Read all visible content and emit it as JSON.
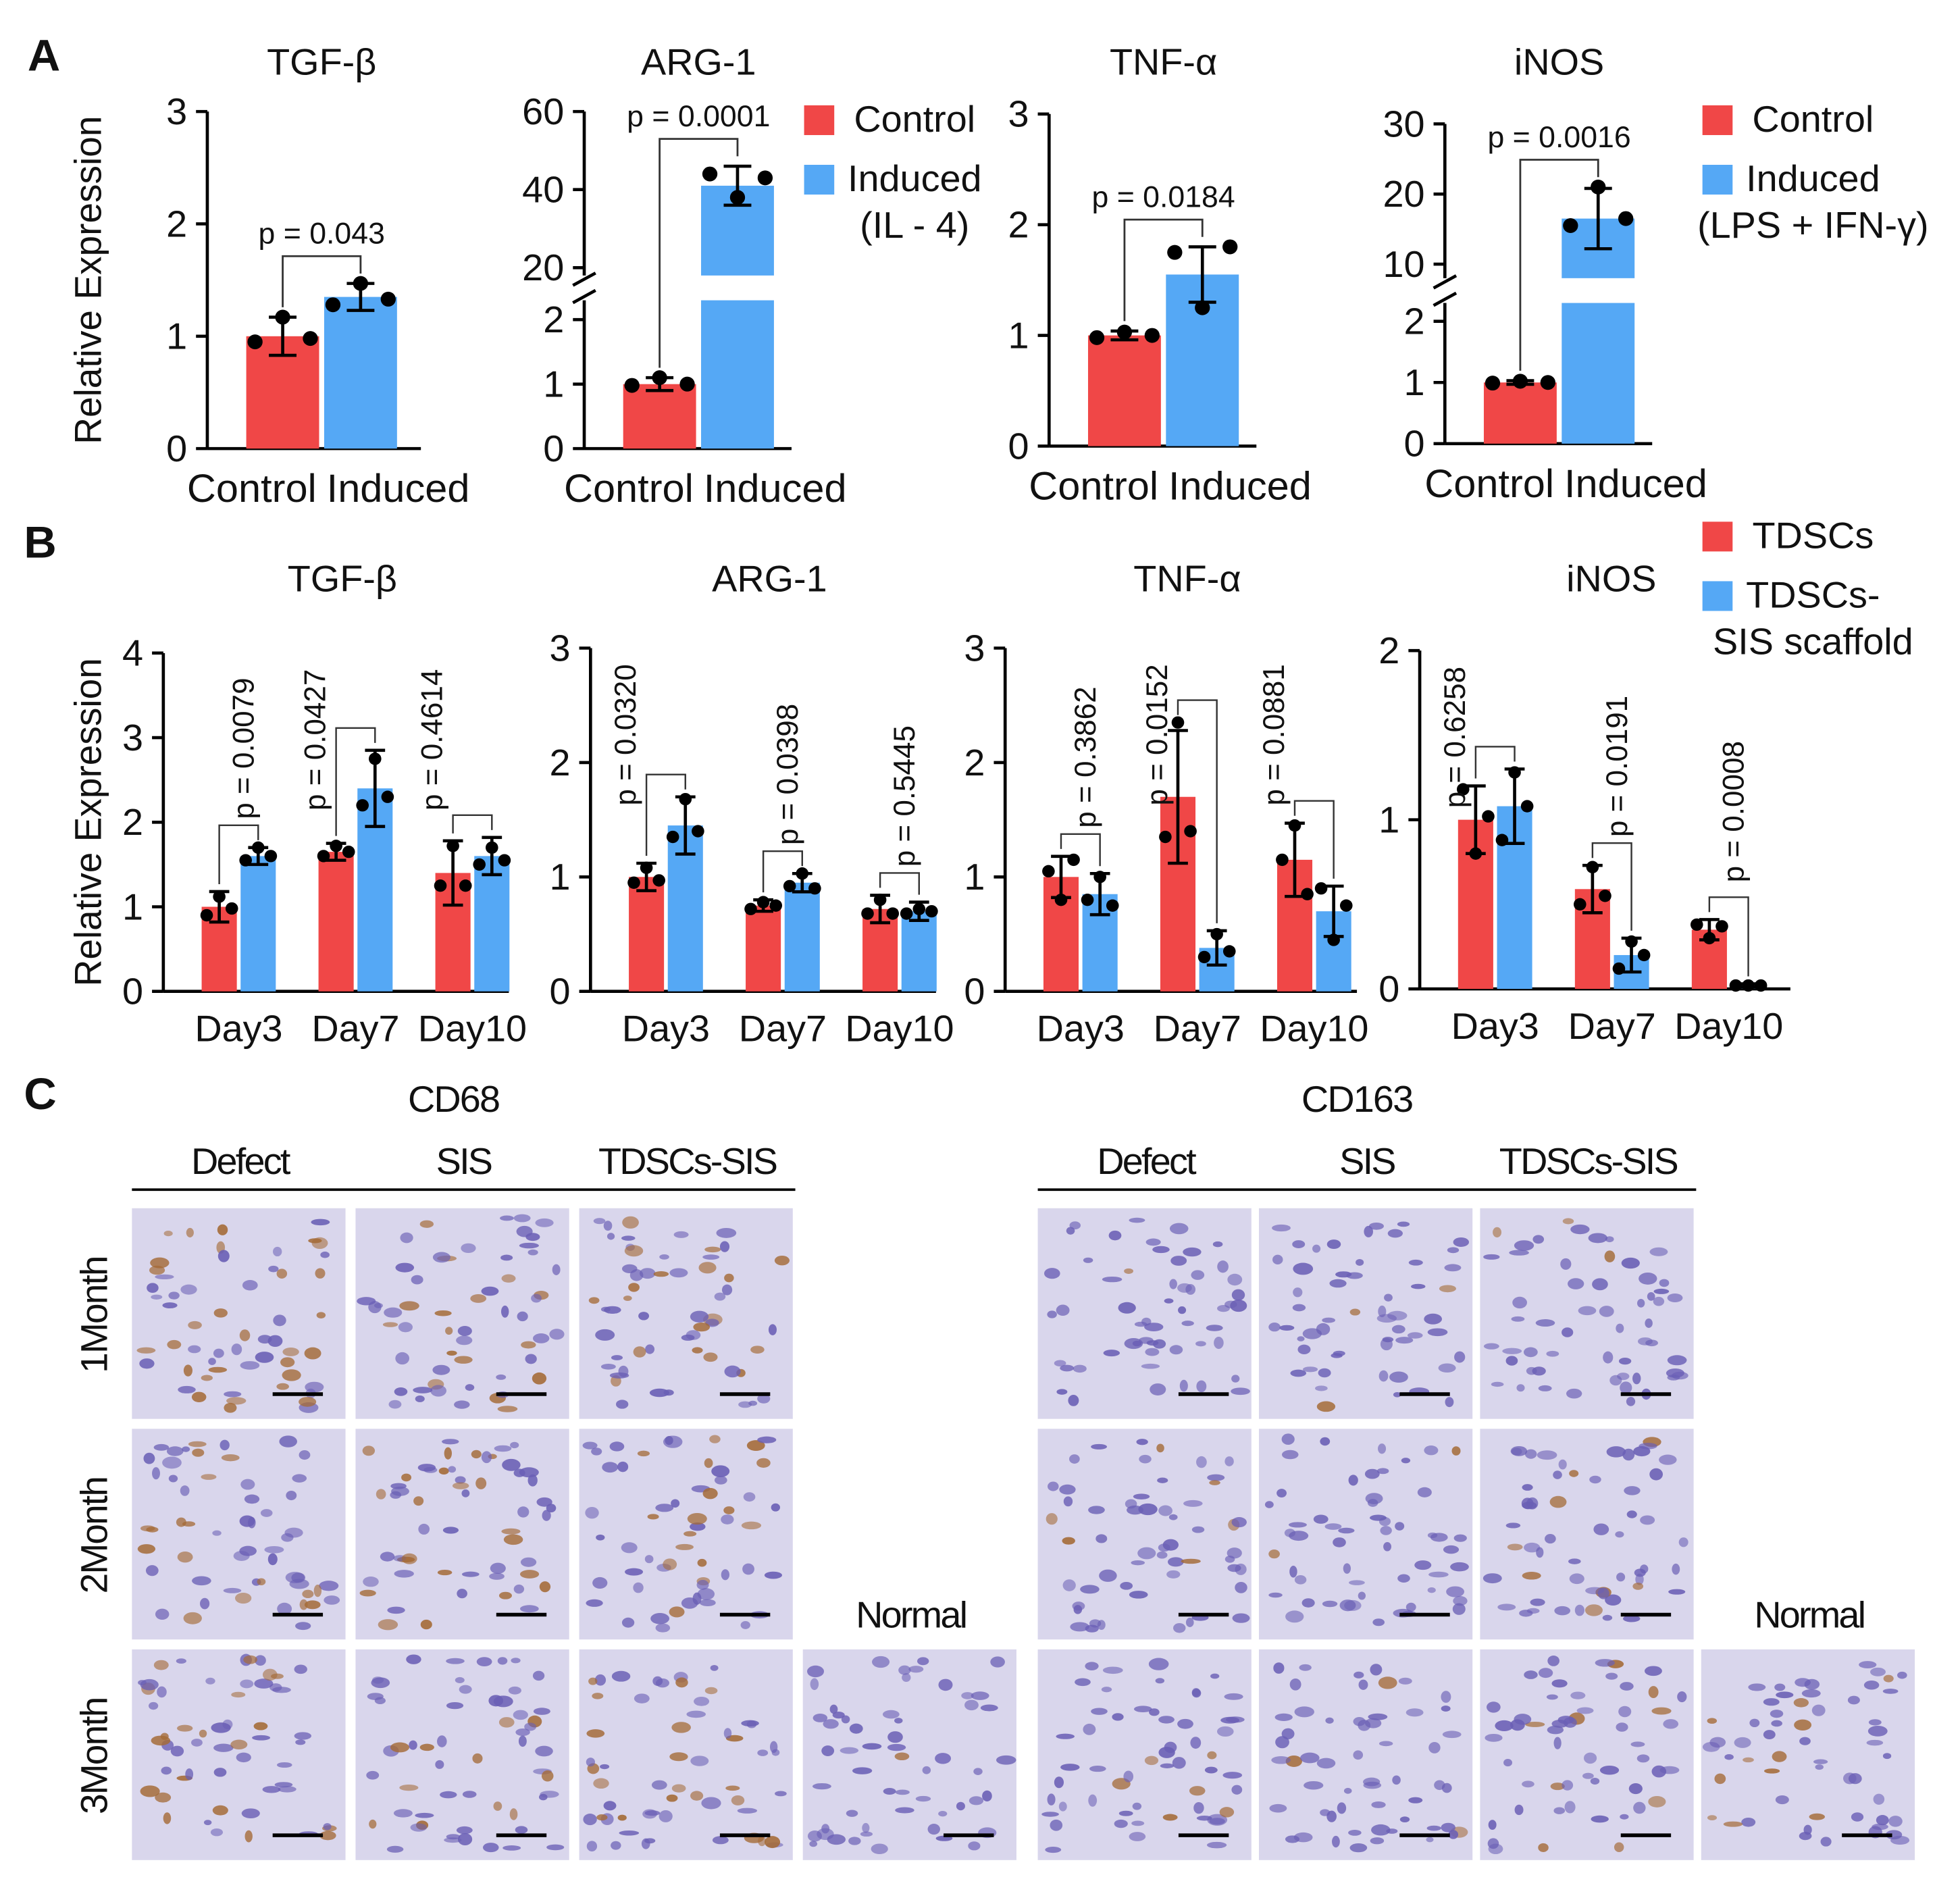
{
  "panel_labels": [
    "A",
    "B",
    "C"
  ],
  "chart_data": [
    {
      "type": "bar",
      "title": "TGF-β",
      "ylabel": "Relative Expression",
      "categories": [
        "Control",
        "Induced"
      ],
      "values": [
        1.0,
        1.35
      ],
      "errors": [
        0.17,
        0.12
      ],
      "points": [
        [
          0.95,
          1.17,
          0.98
        ],
        [
          1.28,
          1.47,
          1.33
        ]
      ],
      "colors": [
        "#f04747",
        "#55a8f5"
      ],
      "p_value": "p = 0.043",
      "ylim": [
        0,
        3
      ],
      "yticks": [
        0,
        1,
        2,
        3
      ]
    },
    {
      "type": "bar",
      "title": "ARG-1",
      "categories": [
        "Control",
        "Induced"
      ],
      "values": [
        1.0,
        41
      ],
      "errors": [
        0.1,
        5
      ],
      "points": [
        [
          0.98,
          1.1,
          1.0
        ],
        [
          44,
          38,
          43
        ]
      ],
      "colors": [
        "#f04747",
        "#55a8f5"
      ],
      "legend": [
        "Control",
        "Induced\n(IL - 4)"
      ],
      "p_value": "p = 0.0001",
      "ylim": [
        0,
        60
      ],
      "axis_break": [
        2.3,
        18
      ],
      "yticks": [
        0,
        1,
        2,
        20,
        40,
        60
      ]
    },
    {
      "type": "bar",
      "title": "TNF-α",
      "categories": [
        "Control",
        "Induced"
      ],
      "values": [
        1.0,
        1.55
      ],
      "errors": [
        0.04,
        0.25
      ],
      "points": [
        [
          0.98,
          1.03,
          1.0
        ],
        [
          1.75,
          1.25,
          1.8
        ]
      ],
      "colors": [
        "#f04747",
        "#55a8f5"
      ],
      "p_value": "p = 0.0184",
      "ylim": [
        0,
        3
      ],
      "yticks": [
        0,
        1,
        2,
        3
      ]
    },
    {
      "type": "bar",
      "title": "iNOS",
      "categories": [
        "Control",
        "Induced"
      ],
      "values": [
        1.0,
        16.5
      ],
      "errors": [
        0.03,
        4.3
      ],
      "points": [
        [
          0.99,
          1.02,
          1.0
        ],
        [
          15.5,
          21,
          16.5
        ]
      ],
      "colors": [
        "#f04747",
        "#55a8f5"
      ],
      "legend": [
        "Control",
        "Induced\n(LPS + IFN-γ)"
      ],
      "p_value": "p = 0.0016",
      "ylim": [
        0,
        30
      ],
      "axis_break": [
        2.3,
        8
      ],
      "yticks": [
        0,
        1,
        2,
        10,
        20,
        30
      ]
    },
    {
      "type": "bar",
      "title": "TGF-β",
      "ylabel": "Relative Expression",
      "categories": [
        "Day3",
        "Day7",
        "Day10"
      ],
      "series": [
        {
          "color": "#f04747",
          "values": [
            1.0,
            1.65,
            1.4
          ],
          "errors": [
            0.18,
            0.1,
            0.38
          ],
          "points": [
            [
              0.9,
              1.12,
              0.98
            ],
            [
              1.6,
              1.72,
              1.65
            ],
            [
              1.25,
              1.72,
              1.25
            ]
          ]
        },
        {
          "color": "#55a8f5",
          "values": [
            1.6,
            2.4,
            1.6
          ],
          "errors": [
            0.1,
            0.45,
            0.22
          ],
          "points": [
            [
              1.55,
              1.7,
              1.6
            ],
            [
              2.2,
              2.75,
              2.3
            ],
            [
              1.5,
              1.7,
              1.55
            ]
          ]
        }
      ],
      "p_values": [
        "p = 0.0079",
        "p = 0.0427",
        "p = 0.4614"
      ],
      "ylim": [
        0,
        4
      ],
      "yticks": [
        0,
        1,
        2,
        3,
        4
      ]
    },
    {
      "type": "bar",
      "title": "ARG-1",
      "categories": [
        "Day3",
        "Day7",
        "Day10"
      ],
      "series": [
        {
          "color": "#f04747",
          "values": [
            1.0,
            0.75,
            0.72
          ],
          "errors": [
            0.12,
            0.05,
            0.12
          ],
          "points": [
            [
              0.95,
              1.08,
              0.97
            ],
            [
              0.72,
              0.78,
              0.75
            ],
            [
              0.68,
              0.8,
              0.68
            ]
          ]
        },
        {
          "color": "#55a8f5",
          "values": [
            1.45,
            0.95,
            0.7
          ],
          "errors": [
            0.25,
            0.08,
            0.08
          ],
          "points": [
            [
              1.35,
              1.68,
              1.4
            ],
            [
              0.92,
              1.03,
              0.9
            ],
            [
              0.68,
              0.72,
              0.7
            ]
          ]
        }
      ],
      "p_values": [
        "p = 0.0320",
        "p = 0.0398",
        "p = 0.5445"
      ],
      "ylim": [
        0,
        3
      ],
      "yticks": [
        0,
        1,
        2,
        3
      ]
    },
    {
      "type": "bar",
      "title": "TNF-α",
      "categories": [
        "Day3",
        "Day7",
        "Day10"
      ],
      "series": [
        {
          "color": "#f04747",
          "values": [
            1.0,
            1.7,
            1.15
          ],
          "errors": [
            0.18,
            0.58,
            0.32
          ],
          "points": [
            [
              1.05,
              0.8,
              1.15
            ],
            [
              1.35,
              2.35,
              1.4
            ],
            [
              1.15,
              1.45,
              0.85
            ]
          ]
        },
        {
          "color": "#55a8f5",
          "values": [
            0.85,
            0.38,
            0.7
          ],
          "errors": [
            0.18,
            0.15,
            0.22
          ],
          "points": [
            [
              0.8,
              1.0,
              0.75
            ],
            [
              0.3,
              0.5,
              0.35
            ],
            [
              0.9,
              0.45,
              0.75
            ]
          ]
        }
      ],
      "p_values": [
        "p = 0.3862",
        "p = 0.0152",
        "p = 0.0881"
      ],
      "ylim": [
        0,
        3
      ],
      "yticks": [
        0,
        1,
        2,
        3
      ]
    },
    {
      "type": "bar",
      "title": "iNOS",
      "categories": [
        "Day3",
        "Day7",
        "Day10"
      ],
      "series": [
        {
          "name": "TDSCs",
          "color": "#f04747",
          "values": [
            1.0,
            0.59,
            0.35
          ],
          "errors": [
            0.2,
            0.14,
            0.06
          ],
          "points": [
            [
              1.18,
              0.8,
              1.02
            ],
            [
              0.5,
              0.72,
              0.55
            ],
            [
              0.38,
              0.3,
              0.37
            ]
          ]
        },
        {
          "name": "TDSCs-\nSIS scaffold",
          "color": "#55a8f5",
          "values": [
            1.08,
            0.2,
            0.02
          ],
          "errors": [
            0.22,
            0.1,
            0.01
          ],
          "points": [
            [
              0.88,
              1.28,
              1.08
            ],
            [
              0.12,
              0.28,
              0.2
            ],
            [
              0.02,
              0.02,
              0.02
            ]
          ]
        }
      ],
      "p_values": [
        "p = 0.6258",
        "p = 0.0191",
        "p = 0.0008"
      ],
      "ylim": [
        0,
        2
      ],
      "yticks": [
        0,
        1,
        2
      ]
    }
  ],
  "histology": {
    "rows": [
      "1Month",
      "2Month",
      "3Month"
    ],
    "markers": [
      {
        "marker": "CD68",
        "columns": [
          "Defect",
          "SIS",
          "TDSCs-SIS"
        ],
        "normal": "Normal"
      },
      {
        "marker": "CD163",
        "columns": [
          "Defect",
          "SIS",
          "TDSCs-SIS"
        ],
        "normal": "Normal"
      }
    ]
  }
}
